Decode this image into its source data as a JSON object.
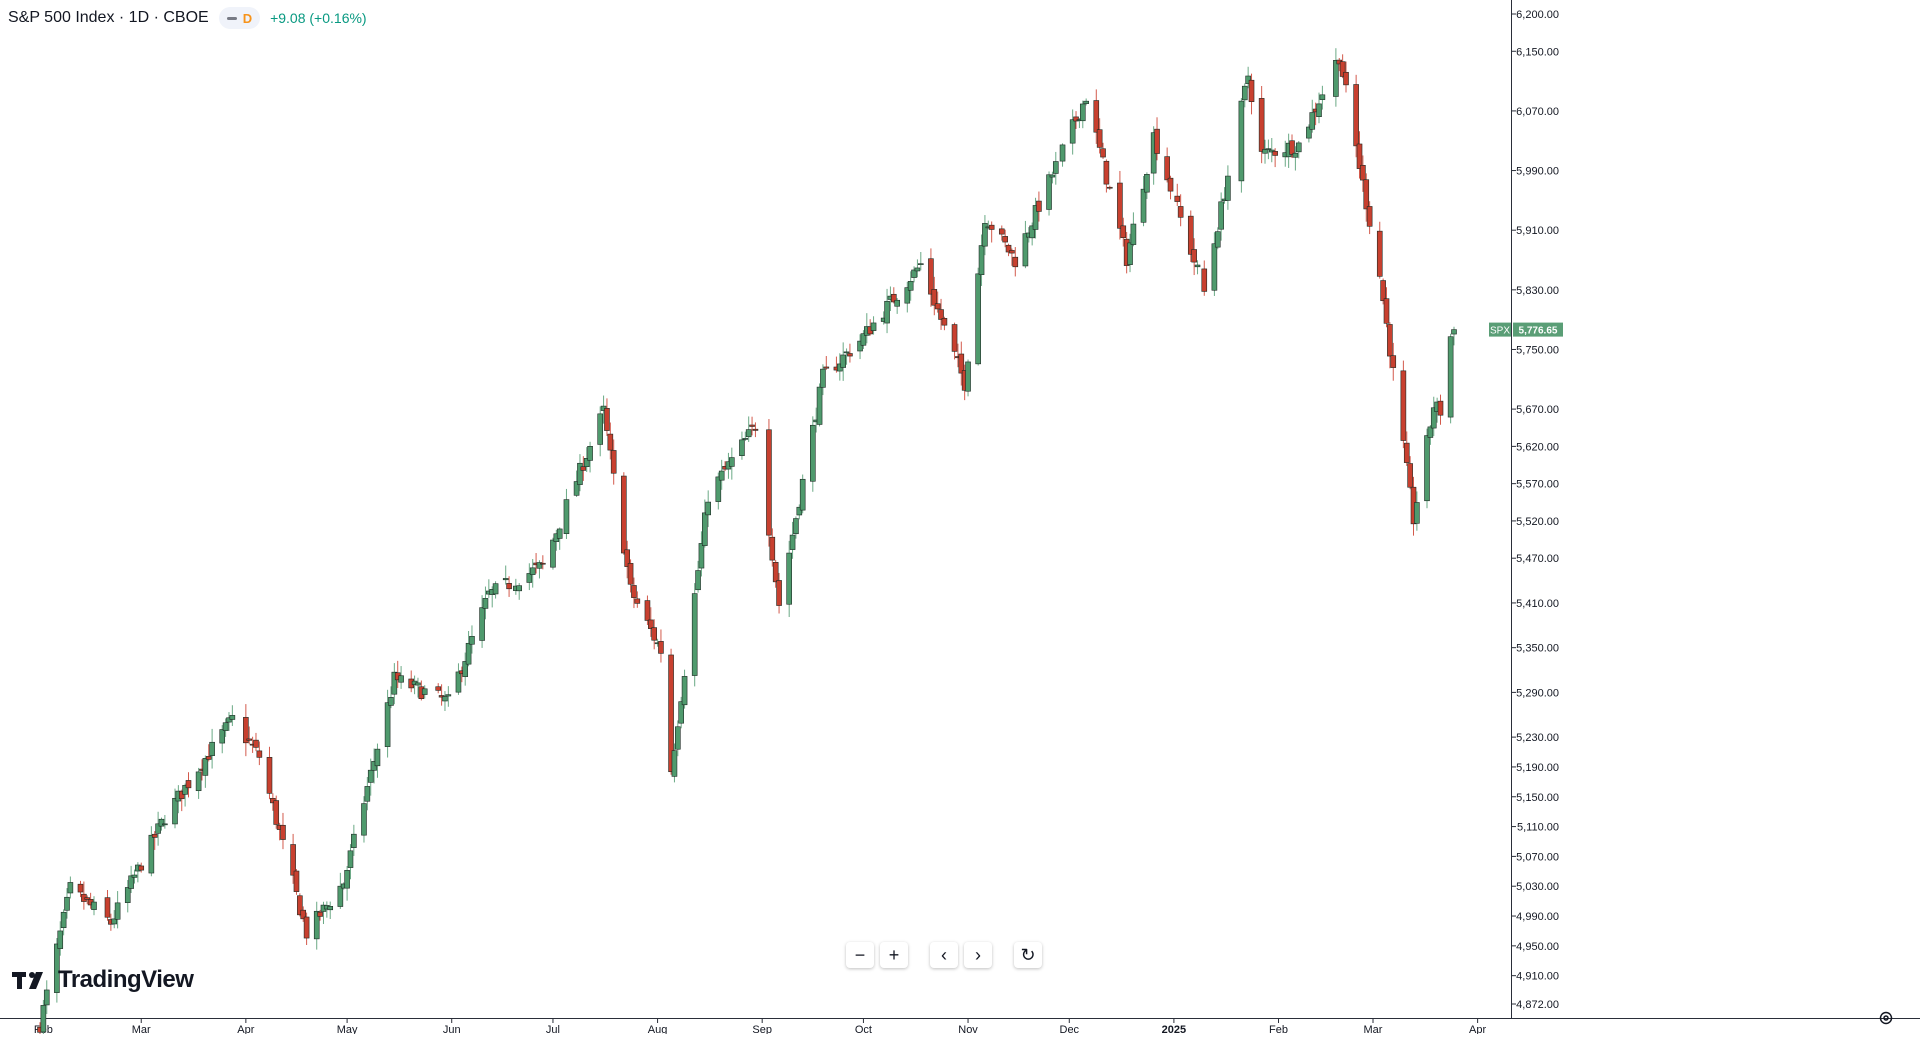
{
  "header": {
    "symbol": "S&P 500 Index · 1D · CBOE",
    "badge": "D",
    "change": "+9.08 (+0.16%)"
  },
  "branding": {
    "logo_text": "TradingView"
  },
  "controls": {
    "zoom_out": "−",
    "zoom_in": "+",
    "scroll_left": "‹",
    "scroll_right": "›",
    "reset": "↻"
  },
  "colors": {
    "up": "#4f9a6d",
    "down": "#c8402f",
    "up_wick": "#6aa985",
    "down_wick": "#d35a4c",
    "price_label_bg": "#5a9e76",
    "axis_text": "#131722",
    "axis_line": "#2a2e39"
  },
  "chart_data": {
    "type": "candlestick",
    "symbol": "SPX",
    "last_price_label": "5,776.65",
    "y_axis_ticks": [
      "6,200.00",
      "6,150.00",
      "6,070.00",
      "5,990.00",
      "5,910.00",
      "5,830.00",
      "5,750.00",
      "5,670.00",
      "5,620.00",
      "5,570.00",
      "5,520.00",
      "5,470.00",
      "5,410.00",
      "5,350.00",
      "5,290.00",
      "5,230.00",
      "5,190.00",
      "5,150.00",
      "5,110.00",
      "5,070.00",
      "5,030.00",
      "4,990.00",
      "4,950.00",
      "4,910.00",
      "4,872.00"
    ],
    "x_axis_ticks": [
      "Feb",
      "Mar",
      "Apr",
      "May",
      "Jun",
      "Jul",
      "Aug",
      "Sep",
      "Oct",
      "Nov",
      "Dec",
      "2025",
      "Feb",
      "Mar",
      "Apr"
    ],
    "ylim": [
      4860,
      6220
    ],
    "anchors": [
      [
        "2024-01-31",
        4845
      ],
      [
        "2024-02-09",
        5026
      ],
      [
        "2024-02-21",
        4981
      ],
      [
        "2024-03-08",
        5123
      ],
      [
        "2024-03-28",
        5254
      ],
      [
        "2024-04-05",
        5204
      ],
      [
        "2024-04-19",
        4967
      ],
      [
        "2024-04-30",
        5035
      ],
      [
        "2024-05-15",
        5308
      ],
      [
        "2024-05-31",
        5277
      ],
      [
        "2024-06-12",
        5421
      ],
      [
        "2024-06-28",
        5460
      ],
      [
        "2024-07-16",
        5667
      ],
      [
        "2024-07-24",
        5427
      ],
      [
        "2024-08-02",
        5346
      ],
      [
        "2024-08-05",
        5186
      ],
      [
        "2024-08-16",
        5554
      ],
      [
        "2024-08-30",
        5648
      ],
      [
        "2024-09-06",
        5408
      ],
      [
        "2024-09-19",
        5713
      ],
      [
        "2024-09-30",
        5762
      ],
      [
        "2024-10-18",
        5864
      ],
      [
        "2024-10-31",
        5705
      ],
      [
        "2024-11-06",
        5929
      ],
      [
        "2024-11-15",
        5870
      ],
      [
        "2024-12-06",
        6090
      ],
      [
        "2024-12-18",
        5872
      ],
      [
        "2024-12-26",
        6037
      ],
      [
        "2025-01-10",
        5827
      ],
      [
        "2025-01-23",
        6118
      ],
      [
        "2025-01-27",
        6012
      ],
      [
        "2025-02-07",
        6025
      ],
      [
        "2025-02-19",
        6144
      ],
      [
        "2025-03-03",
        5849
      ],
      [
        "2025-03-13",
        5522
      ],
      [
        "2025-03-19",
        5675
      ],
      [
        "2025-03-21",
        5667
      ],
      [
        "2025-03-24",
        5767
      ],
      [
        "2025-03-25",
        5776.65
      ]
    ]
  }
}
